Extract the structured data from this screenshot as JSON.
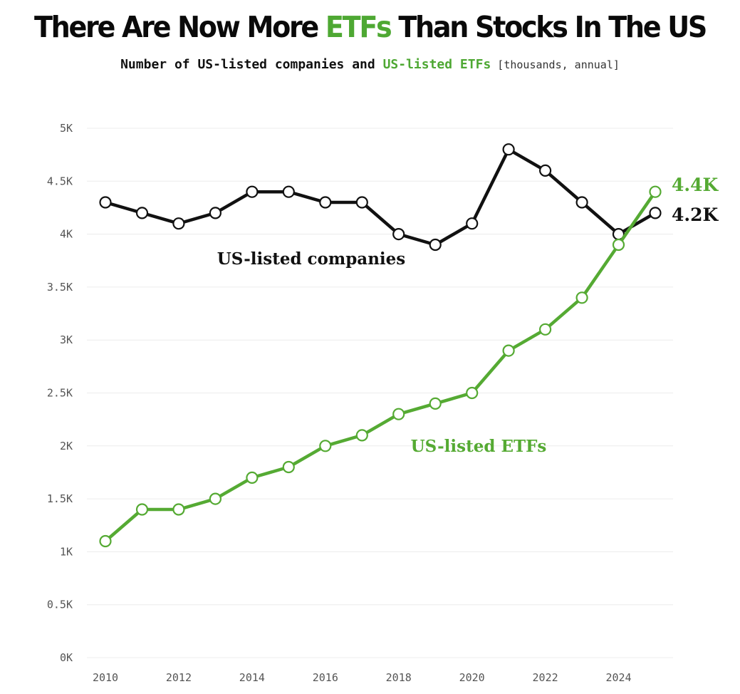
{
  "header": {
    "title_part1": "There Are Now More ",
    "title_accent": "ETFs",
    "title_part2": " Than Stocks In The US",
    "subtitle_part1": "Number of US-listed companies and ",
    "subtitle_accent": "US-listed ETFs",
    "subtitle_note": " [thousands, annual]"
  },
  "colors": {
    "companies": "#111111",
    "etfs": "#55aa33",
    "grid": "#ececec"
  },
  "chart_data": {
    "type": "line",
    "title": "There Are Now More ETFs Than Stocks In The US",
    "subtitle": "Number of US-listed companies and US-listed ETFs [thousands, annual]",
    "xlabel": "",
    "ylabel": "",
    "x": [
      2010,
      2011,
      2012,
      2013,
      2014,
      2015,
      2016,
      2017,
      2018,
      2019,
      2020,
      2021,
      2022,
      2023,
      2024,
      2025
    ],
    "xlim": [
      2010,
      2025
    ],
    "ylim": [
      0,
      5000
    ],
    "x_ticks": [
      2010,
      2012,
      2014,
      2016,
      2018,
      2020,
      2022,
      2024
    ],
    "x_tick_labels": [
      "2010",
      "2012",
      "2014",
      "2016",
      "2018",
      "2020",
      "2022",
      "2024"
    ],
    "y_ticks": [
      0,
      500,
      1000,
      1500,
      2000,
      2500,
      3000,
      3500,
      4000,
      4500,
      5000
    ],
    "y_tick_labels": [
      "0K",
      "0.5K",
      "1K",
      "1.5K",
      "2K",
      "2.5K",
      "3K",
      "3.5K",
      "4K",
      "4.5K",
      "5K"
    ],
    "grid": true,
    "series": [
      {
        "name": "US-listed companies",
        "label": "US-listed companies",
        "end_label": "4.2K",
        "values": [
          4300,
          4200,
          4100,
          4200,
          4400,
          4400,
          4300,
          4300,
          4000,
          3900,
          4100,
          4800,
          4600,
          4300,
          4000,
          4200
        ]
      },
      {
        "name": "US-listed ETFs",
        "label": "US-listed ETFs",
        "end_label": "4.4K",
        "values": [
          1100,
          1400,
          1400,
          1500,
          1700,
          1800,
          2000,
          2100,
          2300,
          2400,
          2500,
          2900,
          3100,
          3400,
          3900,
          4400
        ]
      }
    ]
  }
}
